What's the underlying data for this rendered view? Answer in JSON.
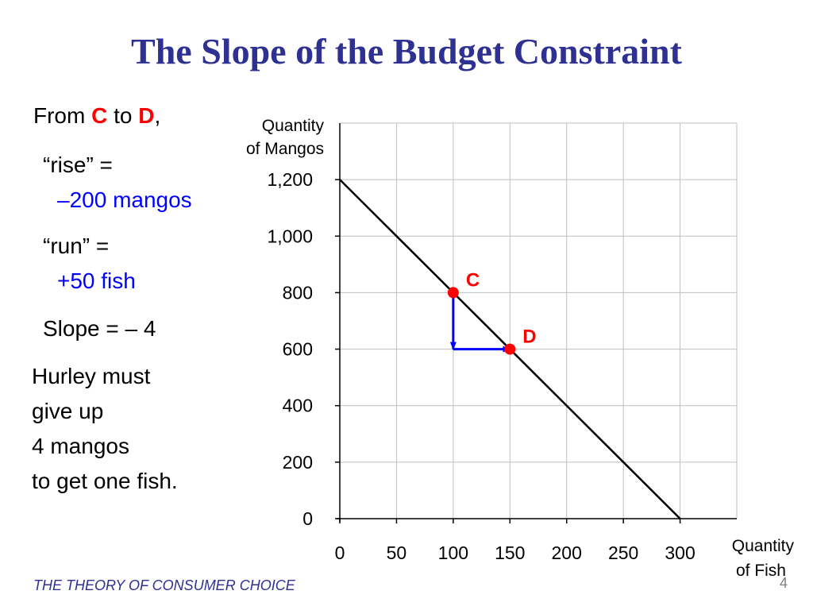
{
  "slide": {
    "title": "The Slope of the Budget Constraint",
    "footer": "THE THEORY OF CONSUMER CHOICE",
    "page_number": "4"
  },
  "explanation": {
    "from_prefix": "From ",
    "point_c": "C",
    "to_word": " to ",
    "point_d": "D",
    "comma": ",",
    "rise_label": "“rise” =",
    "rise_value": "–200 mangos",
    "run_label": "“run” =",
    "run_value": "+50 fish",
    "slope_text": "Slope = – 4",
    "conclusion_lines": [
      "Hurley must",
      "give up",
      "4 mangos",
      "to get one fish."
    ]
  },
  "colors": {
    "title": "#2e3192",
    "point": "#ff0000",
    "arrow": "#0000ff",
    "highlight_value": "#0000ff",
    "line": "#000000",
    "grid": "#bfbfbf"
  },
  "chart_data": {
    "type": "line",
    "xlabel_lines": [
      "Quantity",
      "of Fish"
    ],
    "ylabel_lines": [
      "Quantity",
      "of Mangos"
    ],
    "xlim": [
      0,
      350
    ],
    "ylim": [
      0,
      1400
    ],
    "x_ticks": [
      0,
      50,
      100,
      150,
      200,
      250,
      300
    ],
    "x_tick_labels": [
      "0",
      "50",
      "100",
      "150",
      "200",
      "250",
      "300"
    ],
    "y_ticks": [
      0,
      200,
      400,
      600,
      800,
      1000,
      1200
    ],
    "y_tick_labels": [
      "0",
      "200",
      "400",
      "600",
      "800",
      "1,000",
      "1,200"
    ],
    "grid": true,
    "series": [
      {
        "x": [
          0,
          300
        ],
        "y": [
          1200,
          0
        ]
      }
    ],
    "points": [
      {
        "label": "C",
        "x": 100,
        "y": 800
      },
      {
        "label": "D",
        "x": 150,
        "y": 600
      }
    ],
    "arrows": [
      {
        "from": [
          100,
          800
        ],
        "to": [
          100,
          600
        ],
        "meaning": "rise"
      },
      {
        "from": [
          100,
          600
        ],
        "to": [
          150,
          600
        ],
        "meaning": "run"
      }
    ]
  }
}
